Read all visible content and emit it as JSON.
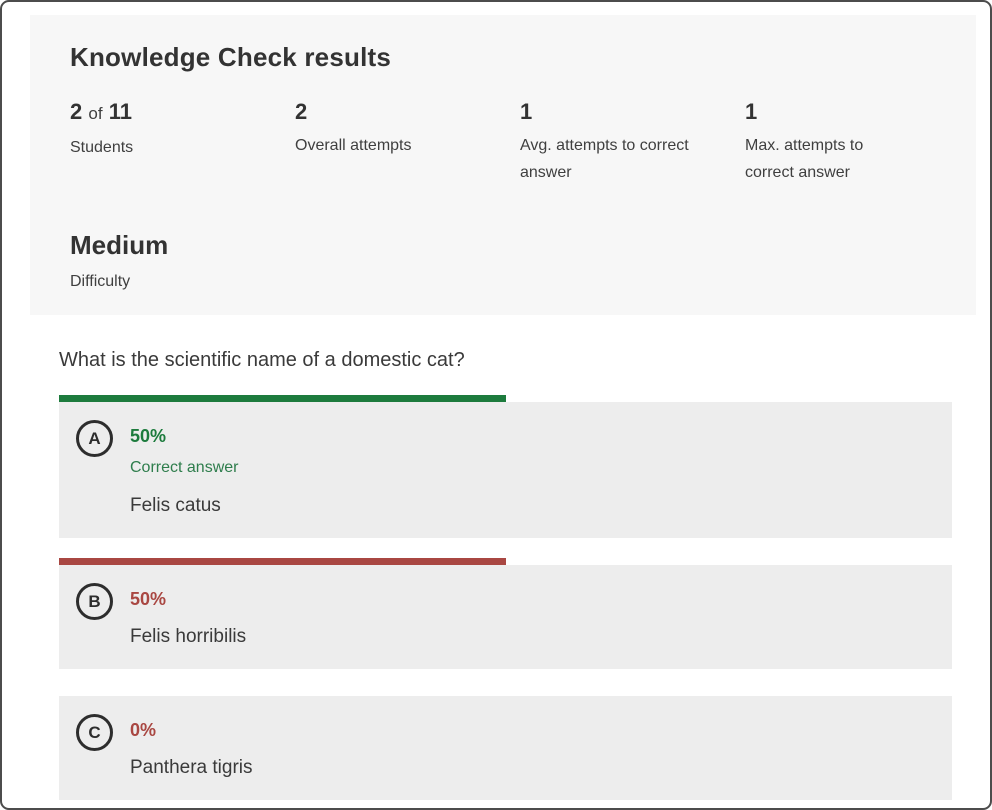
{
  "colors": {
    "window_border": "#4c4c4c",
    "page_background": "#ffffff",
    "summary_background": "#f7f7f7",
    "card_background": "#ededed",
    "correct_green": "#1d7b3d",
    "correct_label_green": "#2e7d4c",
    "incorrect_red": "#a94742",
    "text_dark": "#333333",
    "text_body": "#3f3f3f"
  },
  "summary": {
    "title": "Knowledge Check results",
    "stats": [
      {
        "value": "2",
        "connector": "of",
        "total": "11",
        "label": "Students"
      },
      {
        "value": "2",
        "label": "Overall attempts"
      },
      {
        "value": "1",
        "label": "Avg. attempts to correct answer"
      },
      {
        "value": "1",
        "label": "Max. attempts to correct answer"
      }
    ],
    "difficulty": {
      "value": "Medium",
      "label": "Difficulty"
    }
  },
  "question": {
    "text": "What is the scientific name of a domestic cat?",
    "options": [
      {
        "letter": "A",
        "percent": "50%",
        "percent_value": 50,
        "is_correct": true,
        "correct_label": "Correct answer",
        "answer": "Felis catus"
      },
      {
        "letter": "B",
        "percent": "50%",
        "percent_value": 50,
        "is_correct": false,
        "answer": "Felis horribilis"
      },
      {
        "letter": "C",
        "percent": "0%",
        "percent_value": 0,
        "is_correct": false,
        "answer": "Panthera tigris"
      }
    ]
  }
}
